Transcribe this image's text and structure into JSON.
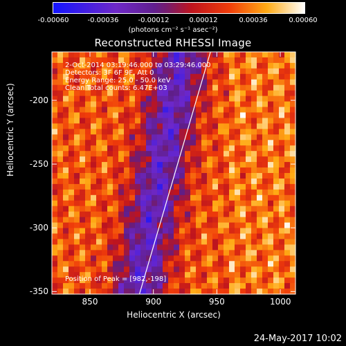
{
  "chart_data": {
    "type": "heatmap",
    "title": "Reconstructed RHESSI Image",
    "xlabel": "Heliocentric X (arcsec)",
    "ylabel": "Heliocentric Y (arcsec)",
    "xlim": [
      820,
      1012
    ],
    "ylim": [
      -352,
      -162
    ],
    "x_ticks": [
      "850",
      "900",
      "950",
      "1000"
    ],
    "x_tick_values": [
      850,
      900,
      950,
      1000
    ],
    "y_ticks": [
      "-200",
      "-250",
      "-300",
      "-350"
    ],
    "y_tick_values": [
      -200,
      -250,
      -300,
      -350
    ],
    "colorbar": {
      "ticks": [
        "-0.00060",
        "-0.00036",
        "-0.00012",
        "0.00012",
        "0.00036",
        "0.00060"
      ],
      "units": "(photons cm⁻² s⁻¹ asec⁻²)",
      "range": [
        -0.0006,
        0.0006
      ]
    },
    "annotations": {
      "time_range": "2-Oct-2014 03:19:46.000 to 03:29:46.000",
      "detectors": "Detectors: 3F 6F 9F, Att 0",
      "energy": "Energy Range: 25.0 - 50.0 keV",
      "method": "Clean    Total counts: 6.47E+03",
      "peak": "Position of Peak = [982,-198]"
    },
    "limb": {
      "x": [
        889,
        945
      ],
      "y": [
        -352,
        -162
      ]
    }
  },
  "timestamp": "24-May-2017 10:02",
  "colors": {
    "background": "#000000",
    "text": "#ffffff"
  }
}
